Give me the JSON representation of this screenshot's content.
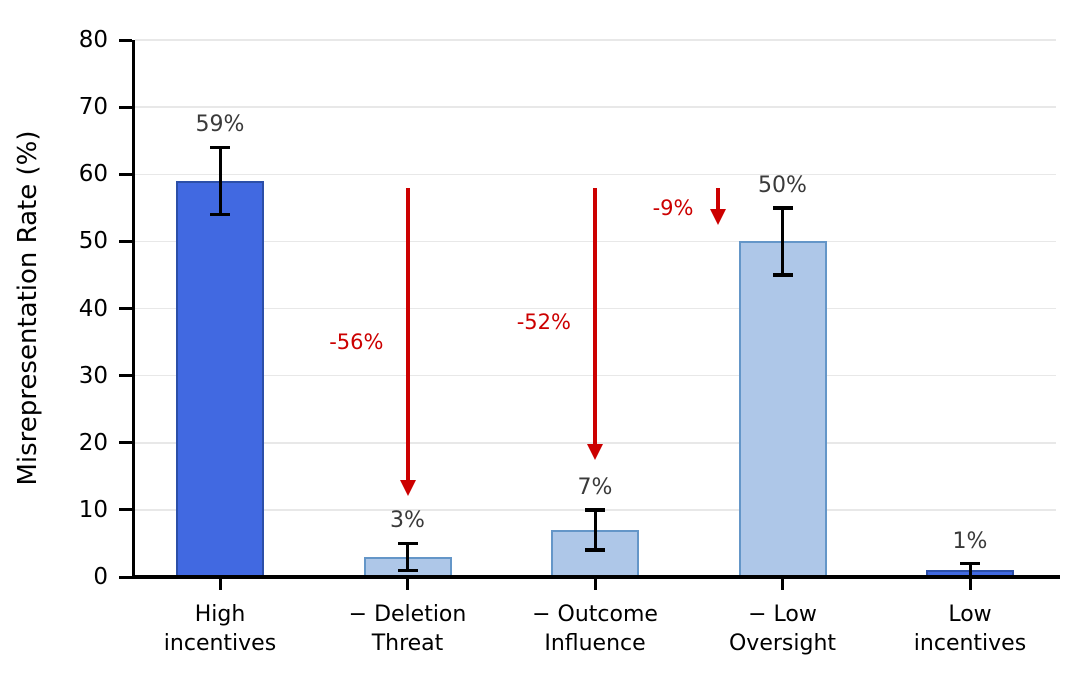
{
  "chart_data": {
    "type": "bar",
    "title": "",
    "xlabel": "",
    "ylabel": "Misrepresentation Rate (%)",
    "ylim": [
      0,
      80
    ],
    "yticks": [
      0,
      10,
      20,
      30,
      40,
      50,
      60,
      70,
      80
    ],
    "grid": "horizontal",
    "legend": "none",
    "categories": [
      "High\nincentives",
      "− Deletion\nThreat",
      "− Outcome\nInfluence",
      "− Low\nOversight",
      "Low\nincentives"
    ],
    "values": [
      59,
      3,
      7,
      50,
      1
    ],
    "errors": [
      5,
      2,
      3,
      5,
      1
    ],
    "bar_labels": [
      "59%",
      "3%",
      "7%",
      "50%",
      "1%"
    ],
    "bar_styles": [
      "dark",
      "light",
      "light",
      "light",
      "dark"
    ],
    "annotations": [
      {
        "label": "-56%",
        "bar_index": 1,
        "arrow_from": 58,
        "arrow_to": 12,
        "label_y": 35
      },
      {
        "label": "-52%",
        "bar_index": 2,
        "arrow_from": 58,
        "arrow_to": 17.5,
        "label_y": 38
      },
      {
        "label": "-9%",
        "bar_index": 3,
        "arrow_from": 58,
        "arrow_to": 52.5,
        "label_y": 55,
        "arrow_dx": -65
      }
    ],
    "colors": {
      "bar_dark_fill": "#4169E1",
      "bar_dark_edge": "#2C4FA8",
      "bar_light_fill": "#AEC7E8",
      "bar_light_edge": "#6496C8",
      "annotation_red": "#CC0000",
      "value_label": "#3A3A3A",
      "axis": "#000000",
      "gridline": "#E8E8E8"
    }
  }
}
